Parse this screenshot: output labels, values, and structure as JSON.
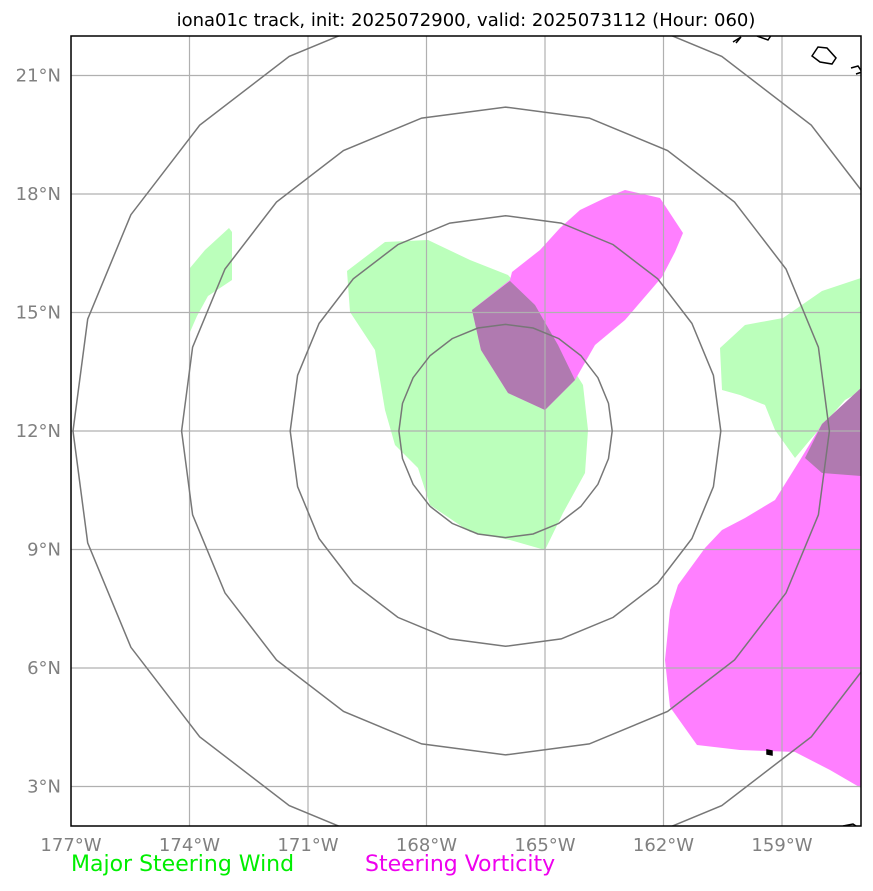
{
  "title": "iona01c track, init: 2025072900, valid: 2025073112 (Hour: 060)",
  "map": {
    "center": {
      "lon": -166.0,
      "lat": 12.0
    },
    "lon_range": [
      -177,
      -157
    ],
    "lat_range": [
      2,
      22
    ],
    "lon_ticks": [
      {
        "value": -177,
        "label": "177°W"
      },
      {
        "value": -174,
        "label": "174°W"
      },
      {
        "value": -171,
        "label": "171°W"
      },
      {
        "value": -168,
        "label": "168°W"
      },
      {
        "value": -165,
        "label": "165°W"
      },
      {
        "value": -162,
        "label": "162°W"
      },
      {
        "value": -159,
        "label": "159°W"
      }
    ],
    "lat_ticks": [
      {
        "value": 21,
        "label": "21°N"
      },
      {
        "value": 18,
        "label": "18°N"
      },
      {
        "value": 15,
        "label": "15°N"
      },
      {
        "value": 12,
        "label": "12°N"
      },
      {
        "value": 9,
        "label": "9°N"
      },
      {
        "value": 6,
        "label": "6°N"
      },
      {
        "value": 3,
        "label": "3°N"
      }
    ],
    "range_rings_deg": [
      2.7,
      5.45,
      8.2,
      10.95
    ],
    "gridlines": true,
    "colors": {
      "steering_wind": "#bbffbb",
      "steering_vorticity": "#ff7fff",
      "overlap": "#b07ab0",
      "rings": "#777777",
      "grid": "#b0b0b0",
      "coastline": "#000000"
    }
  },
  "legend": {
    "wind": {
      "label": "Major Steering Wind",
      "color": "#00ee00"
    },
    "vorticity": {
      "label": "Steering Vorticity",
      "color": "#ee00ee"
    }
  }
}
